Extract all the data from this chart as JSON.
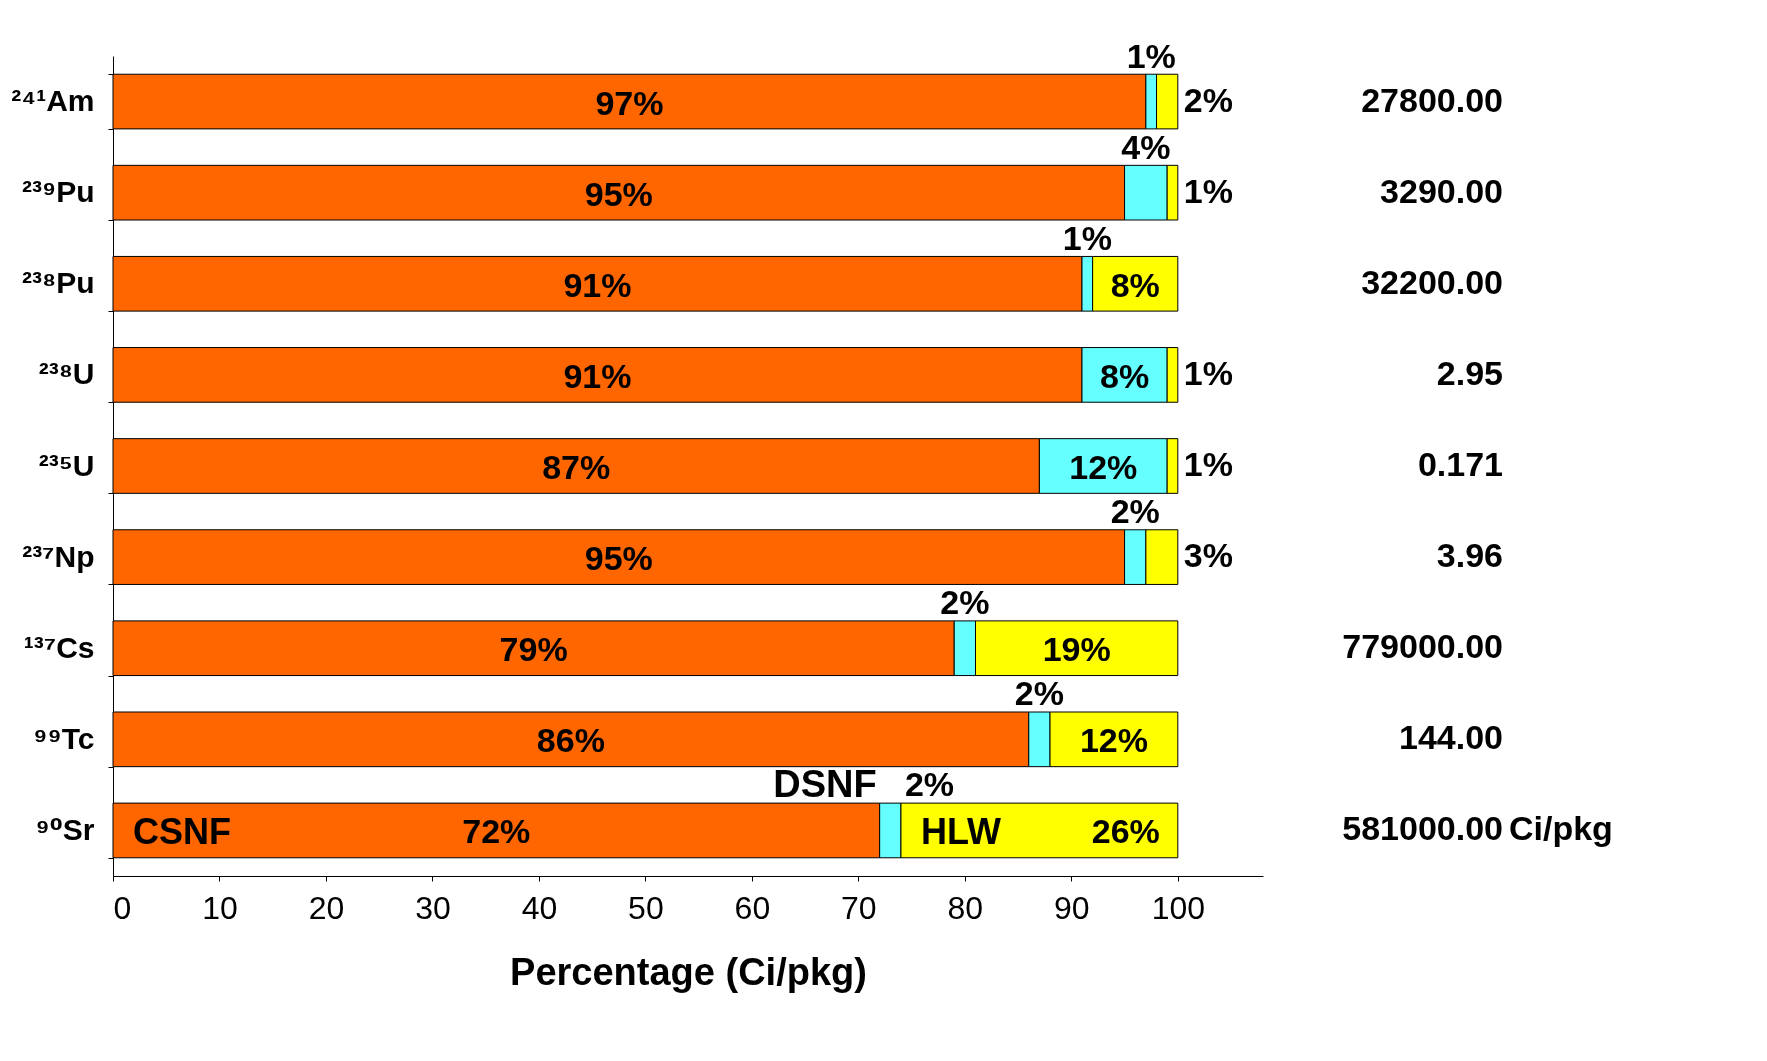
{
  "chart_data": {
    "type": "bar",
    "orientation": "horizontal",
    "stacked": true,
    "xlabel": "Percentage (Ci/pkg)",
    "categories": [
      "²⁴¹Am",
      "²³⁹Pu",
      "²³⁸Pu",
      "²³⁸U",
      "²³⁵U",
      "²³⁷Np",
      "¹³⁷Cs",
      "⁹⁹Tc",
      "⁹⁰Sr"
    ],
    "series": [
      {
        "name": "CSNF",
        "color": "#ff6600",
        "values": [
          97,
          95,
          91,
          91,
          87,
          95,
          79,
          86,
          72
        ],
        "value_labels": [
          "97%",
          "95%",
          "91%",
          "91%",
          "87%",
          "95%",
          "79%",
          "86%",
          "72%"
        ]
      },
      {
        "name": "DSNF",
        "color": "#66ffff",
        "values": [
          1,
          4,
          1,
          8,
          12,
          2,
          2,
          2,
          2
        ],
        "value_labels": [
          "1%",
          "4%",
          "1%",
          "8%",
          "12%",
          "2%",
          "2%",
          "2%",
          "2%"
        ]
      },
      {
        "name": "HLW",
        "color": "#ffff00",
        "values": [
          2,
          1,
          8,
          1,
          1,
          3,
          19,
          12,
          26
        ],
        "value_labels": [
          "2%",
          "1%",
          "8%",
          "1%",
          "1%",
          "3%",
          "19%",
          "12%",
          "26%"
        ]
      }
    ],
    "xlim": [
      0,
      108
    ],
    "xticks": [
      0,
      10,
      20,
      30,
      40,
      50,
      60,
      70,
      80,
      90,
      100
    ],
    "grid": false,
    "annotations": [
      "27800.00",
      "3290.00",
      "32200.00",
      "2.95",
      "0.171",
      "3.96",
      "779000.00",
      "144.00",
      "581000.00",
      "Ci/pkg"
    ]
  }
}
